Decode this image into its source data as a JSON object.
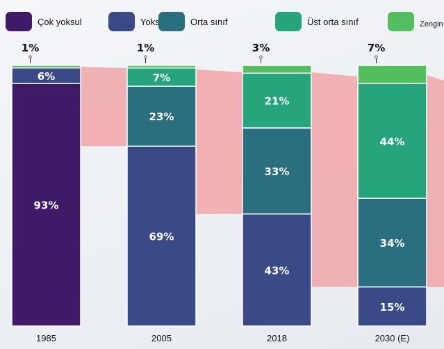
{
  "chart_data": {
    "type": "bar",
    "stacked": true,
    "categories": [
      "1985",
      "2005",
      "2018",
      "2030 (E)"
    ],
    "series": [
      {
        "name": "Çok yoksul",
        "color": "#3f1a66",
        "values": [
          93,
          0,
          0,
          0
        ]
      },
      {
        "name": "Yoksul",
        "color": "#3a4a87",
        "values": [
          6,
          69,
          43,
          15
        ]
      },
      {
        "name": "Orta sınıf",
        "color": "#2a6e80",
        "values": [
          0,
          23,
          33,
          34
        ]
      },
      {
        "name": "Üst orta sınıf",
        "color": "#26a47c",
        "values": [
          0,
          7,
          21,
          44
        ]
      },
      {
        "name": "Zengin",
        "color": "#52be5e",
        "values": [
          1,
          1,
          3,
          7
        ]
      }
    ],
    "ylim": [
      0,
      100
    ],
    "legend": "top",
    "grid": false,
    "unit": "%"
  }
}
